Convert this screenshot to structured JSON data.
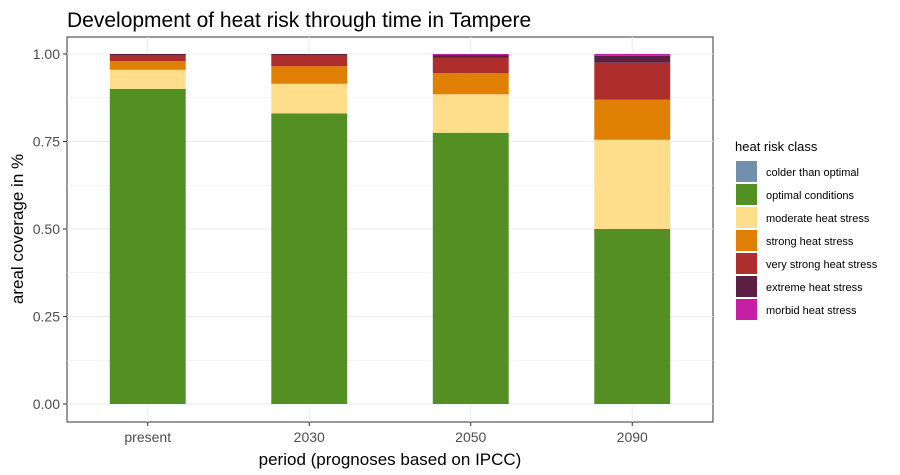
{
  "chart_data": {
    "type": "bar",
    "stacked": true,
    "title": "Development of heat risk through time in Tampere",
    "xlabel": "period (prognoses based on IPCC)",
    "ylabel": "areal coverage in %",
    "categories": [
      "present",
      "2030",
      "2050",
      "2090"
    ],
    "ylim": [
      0,
      1
    ],
    "yticks": [
      "0.00",
      "0.25",
      "0.50",
      "0.75",
      "1.00"
    ],
    "grid": true,
    "legend_title": "heat risk class",
    "legend_position": "right",
    "series": [
      {
        "name": "colder than optimal",
        "color": "#7290ac",
        "values": [
          0.0,
          0.0,
          0.0,
          0.0
        ]
      },
      {
        "name": "optimal conditions",
        "color": "#548f24",
        "values": [
          0.9,
          0.83,
          0.775,
          0.5
        ]
      },
      {
        "name": "moderate heat stress",
        "color": "#fedd8b",
        "values": [
          0.055,
          0.085,
          0.11,
          0.255
        ]
      },
      {
        "name": "strong heat stress",
        "color": "#df7f04",
        "values": [
          0.025,
          0.05,
          0.06,
          0.115
        ]
      },
      {
        "name": "very strong heat stress",
        "color": "#ae2d2d",
        "values": [
          0.015,
          0.03,
          0.045,
          0.105
        ]
      },
      {
        "name": "extreme heat stress",
        "color": "#5b2044",
        "values": [
          0.005,
          0.005,
          0.007,
          0.02
        ]
      },
      {
        "name": "morbid heat stress",
        "color": "#c71ea6",
        "values": [
          0.0,
          0.0,
          0.003,
          0.005
        ]
      }
    ]
  }
}
